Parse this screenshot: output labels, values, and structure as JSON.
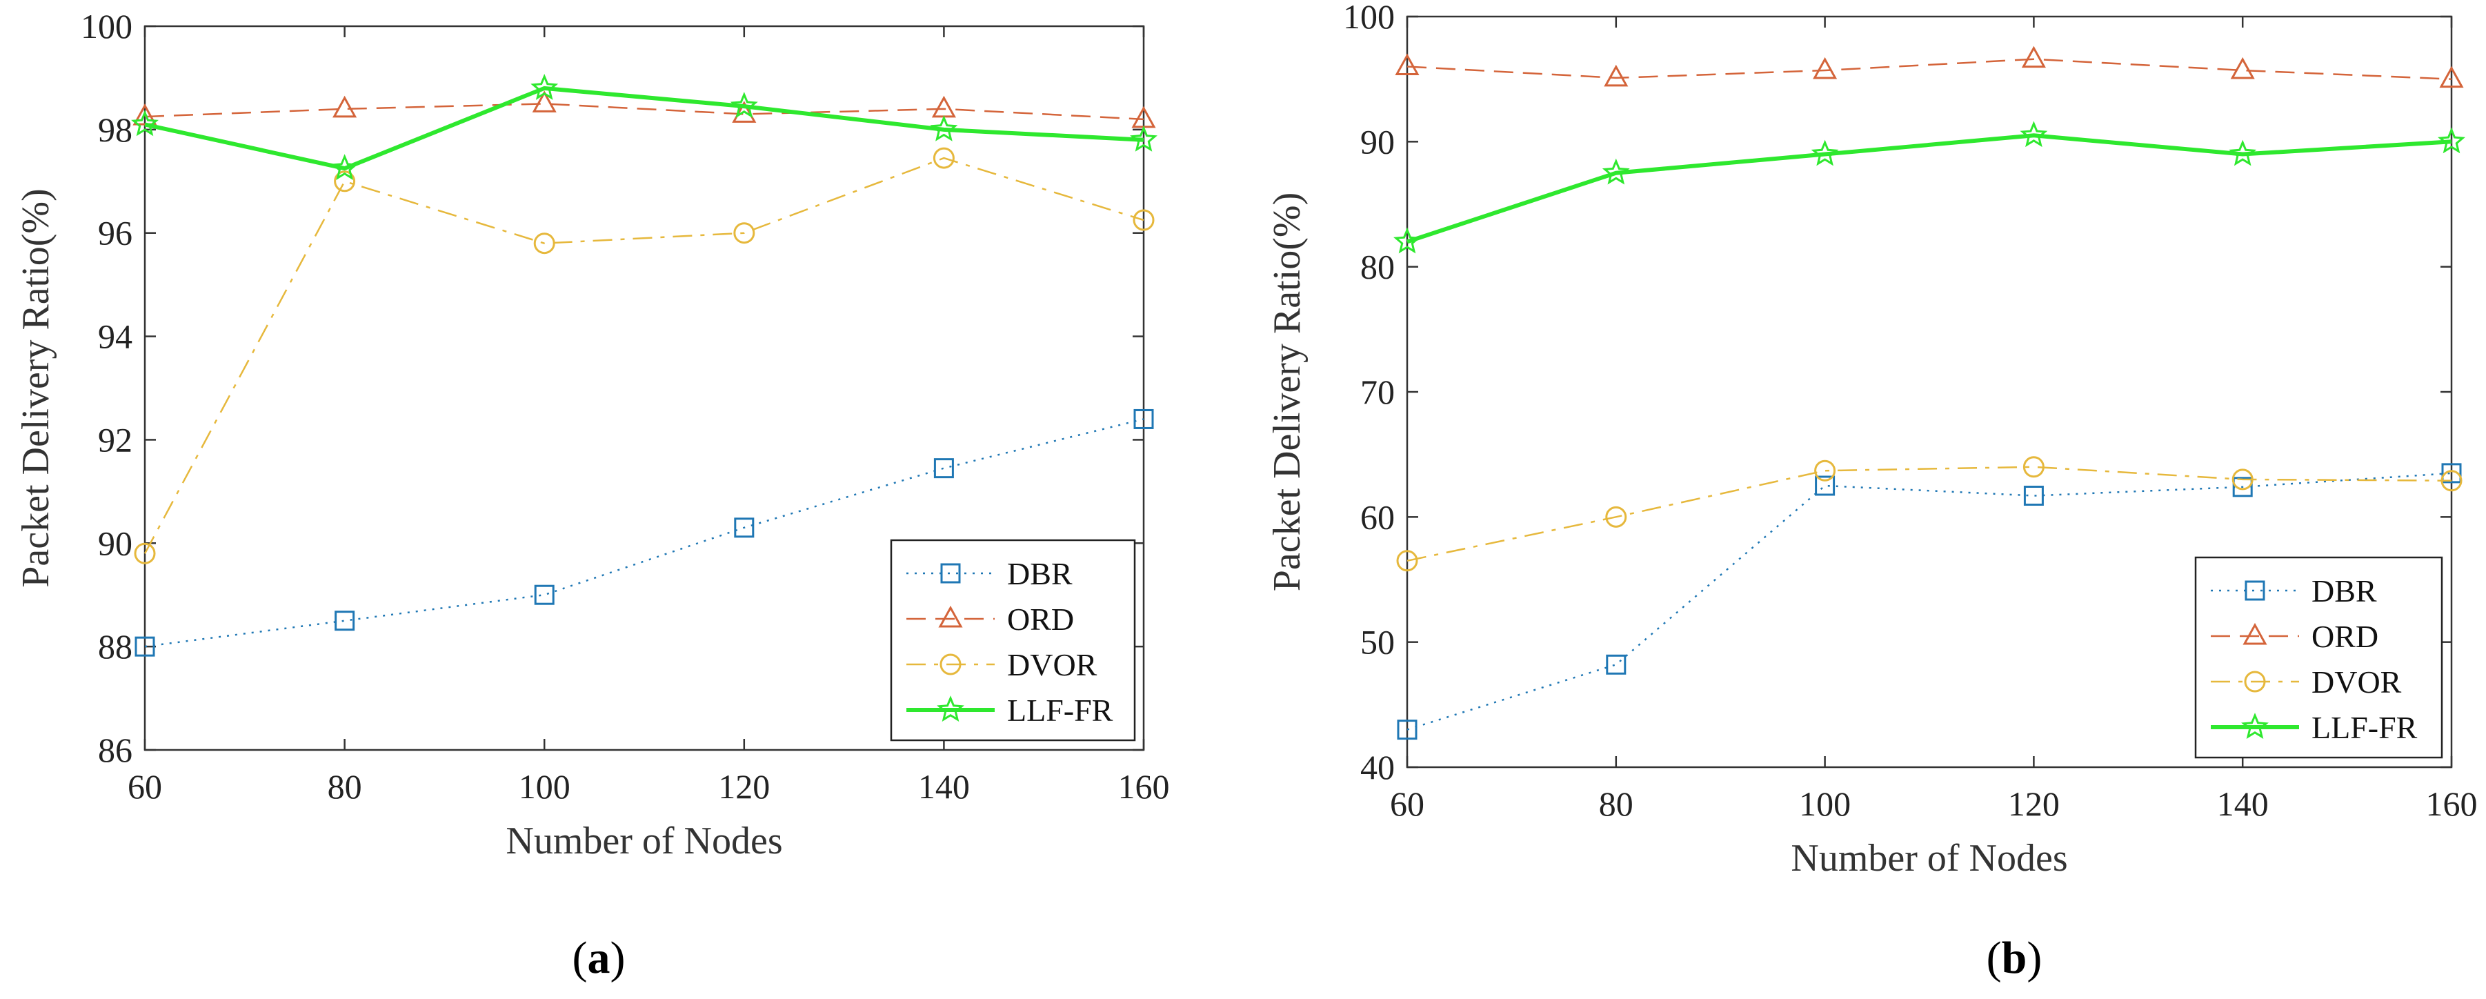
{
  "colors": {
    "DBR": "#1f77b4",
    "ORD": "#d4643a",
    "DVOR": "#e6b83c",
    "LLF-FR": "#2ee82e"
  },
  "chart_data": [
    {
      "type": "line",
      "caption": "a",
      "xlabel": "Number of Nodes",
      "ylabel": "Packet Delivery Ratio(%)",
      "x": [
        60,
        80,
        100,
        120,
        140,
        160
      ],
      "xlim": [
        60,
        160
      ],
      "ylim": [
        86,
        100
      ],
      "xticks": [
        "60",
        "80",
        "100",
        "120",
        "140",
        "160"
      ],
      "yticks": [
        "86",
        "88",
        "90",
        "92",
        "94",
        "96",
        "98",
        "100"
      ],
      "legend_position": "bottom-right",
      "series": [
        {
          "name": "DBR",
          "marker": "square",
          "dash": "dotted",
          "values": [
            88.0,
            88.5,
            89.0,
            90.3,
            91.45,
            92.4
          ]
        },
        {
          "name": "ORD",
          "marker": "triangle",
          "dash": "dashed",
          "values": [
            98.25,
            98.4,
            98.5,
            98.3,
            98.4,
            98.2
          ]
        },
        {
          "name": "DVOR",
          "marker": "circle",
          "dash": "dashdot",
          "values": [
            89.8,
            97.0,
            95.8,
            96.0,
            97.45,
            96.25
          ]
        },
        {
          "name": "LLF-FR",
          "marker": "star",
          "dash": "solid",
          "values": [
            98.1,
            97.25,
            98.8,
            98.45,
            98.0,
            97.8
          ]
        }
      ]
    },
    {
      "type": "line",
      "caption": "b",
      "xlabel": "Number of Nodes",
      "ylabel": "Packet Delivery Ratio(%)",
      "x": [
        60,
        80,
        100,
        120,
        140,
        160
      ],
      "xlim": [
        60,
        160
      ],
      "ylim": [
        40,
        100
      ],
      "xticks": [
        "60",
        "80",
        "100",
        "120",
        "140",
        "160"
      ],
      "yticks": [
        "40",
        "50",
        "60",
        "70",
        "80",
        "90",
        "100"
      ],
      "legend_position": "bottom-right",
      "series": [
        {
          "name": "DBR",
          "marker": "square",
          "dash": "dotted",
          "values": [
            43.0,
            48.2,
            62.5,
            61.7,
            62.4,
            63.5
          ]
        },
        {
          "name": "ORD",
          "marker": "triangle",
          "dash": "dashed",
          "values": [
            96.0,
            95.1,
            95.7,
            96.6,
            95.7,
            95.0
          ]
        },
        {
          "name": "DVOR",
          "marker": "circle",
          "dash": "dashdot",
          "values": [
            56.5,
            60.0,
            63.7,
            64.0,
            63.0,
            62.9
          ]
        },
        {
          "name": "LLF-FR",
          "marker": "star",
          "dash": "solid",
          "values": [
            82.0,
            87.5,
            89.0,
            90.5,
            89.0,
            90.0
          ]
        }
      ]
    }
  ]
}
